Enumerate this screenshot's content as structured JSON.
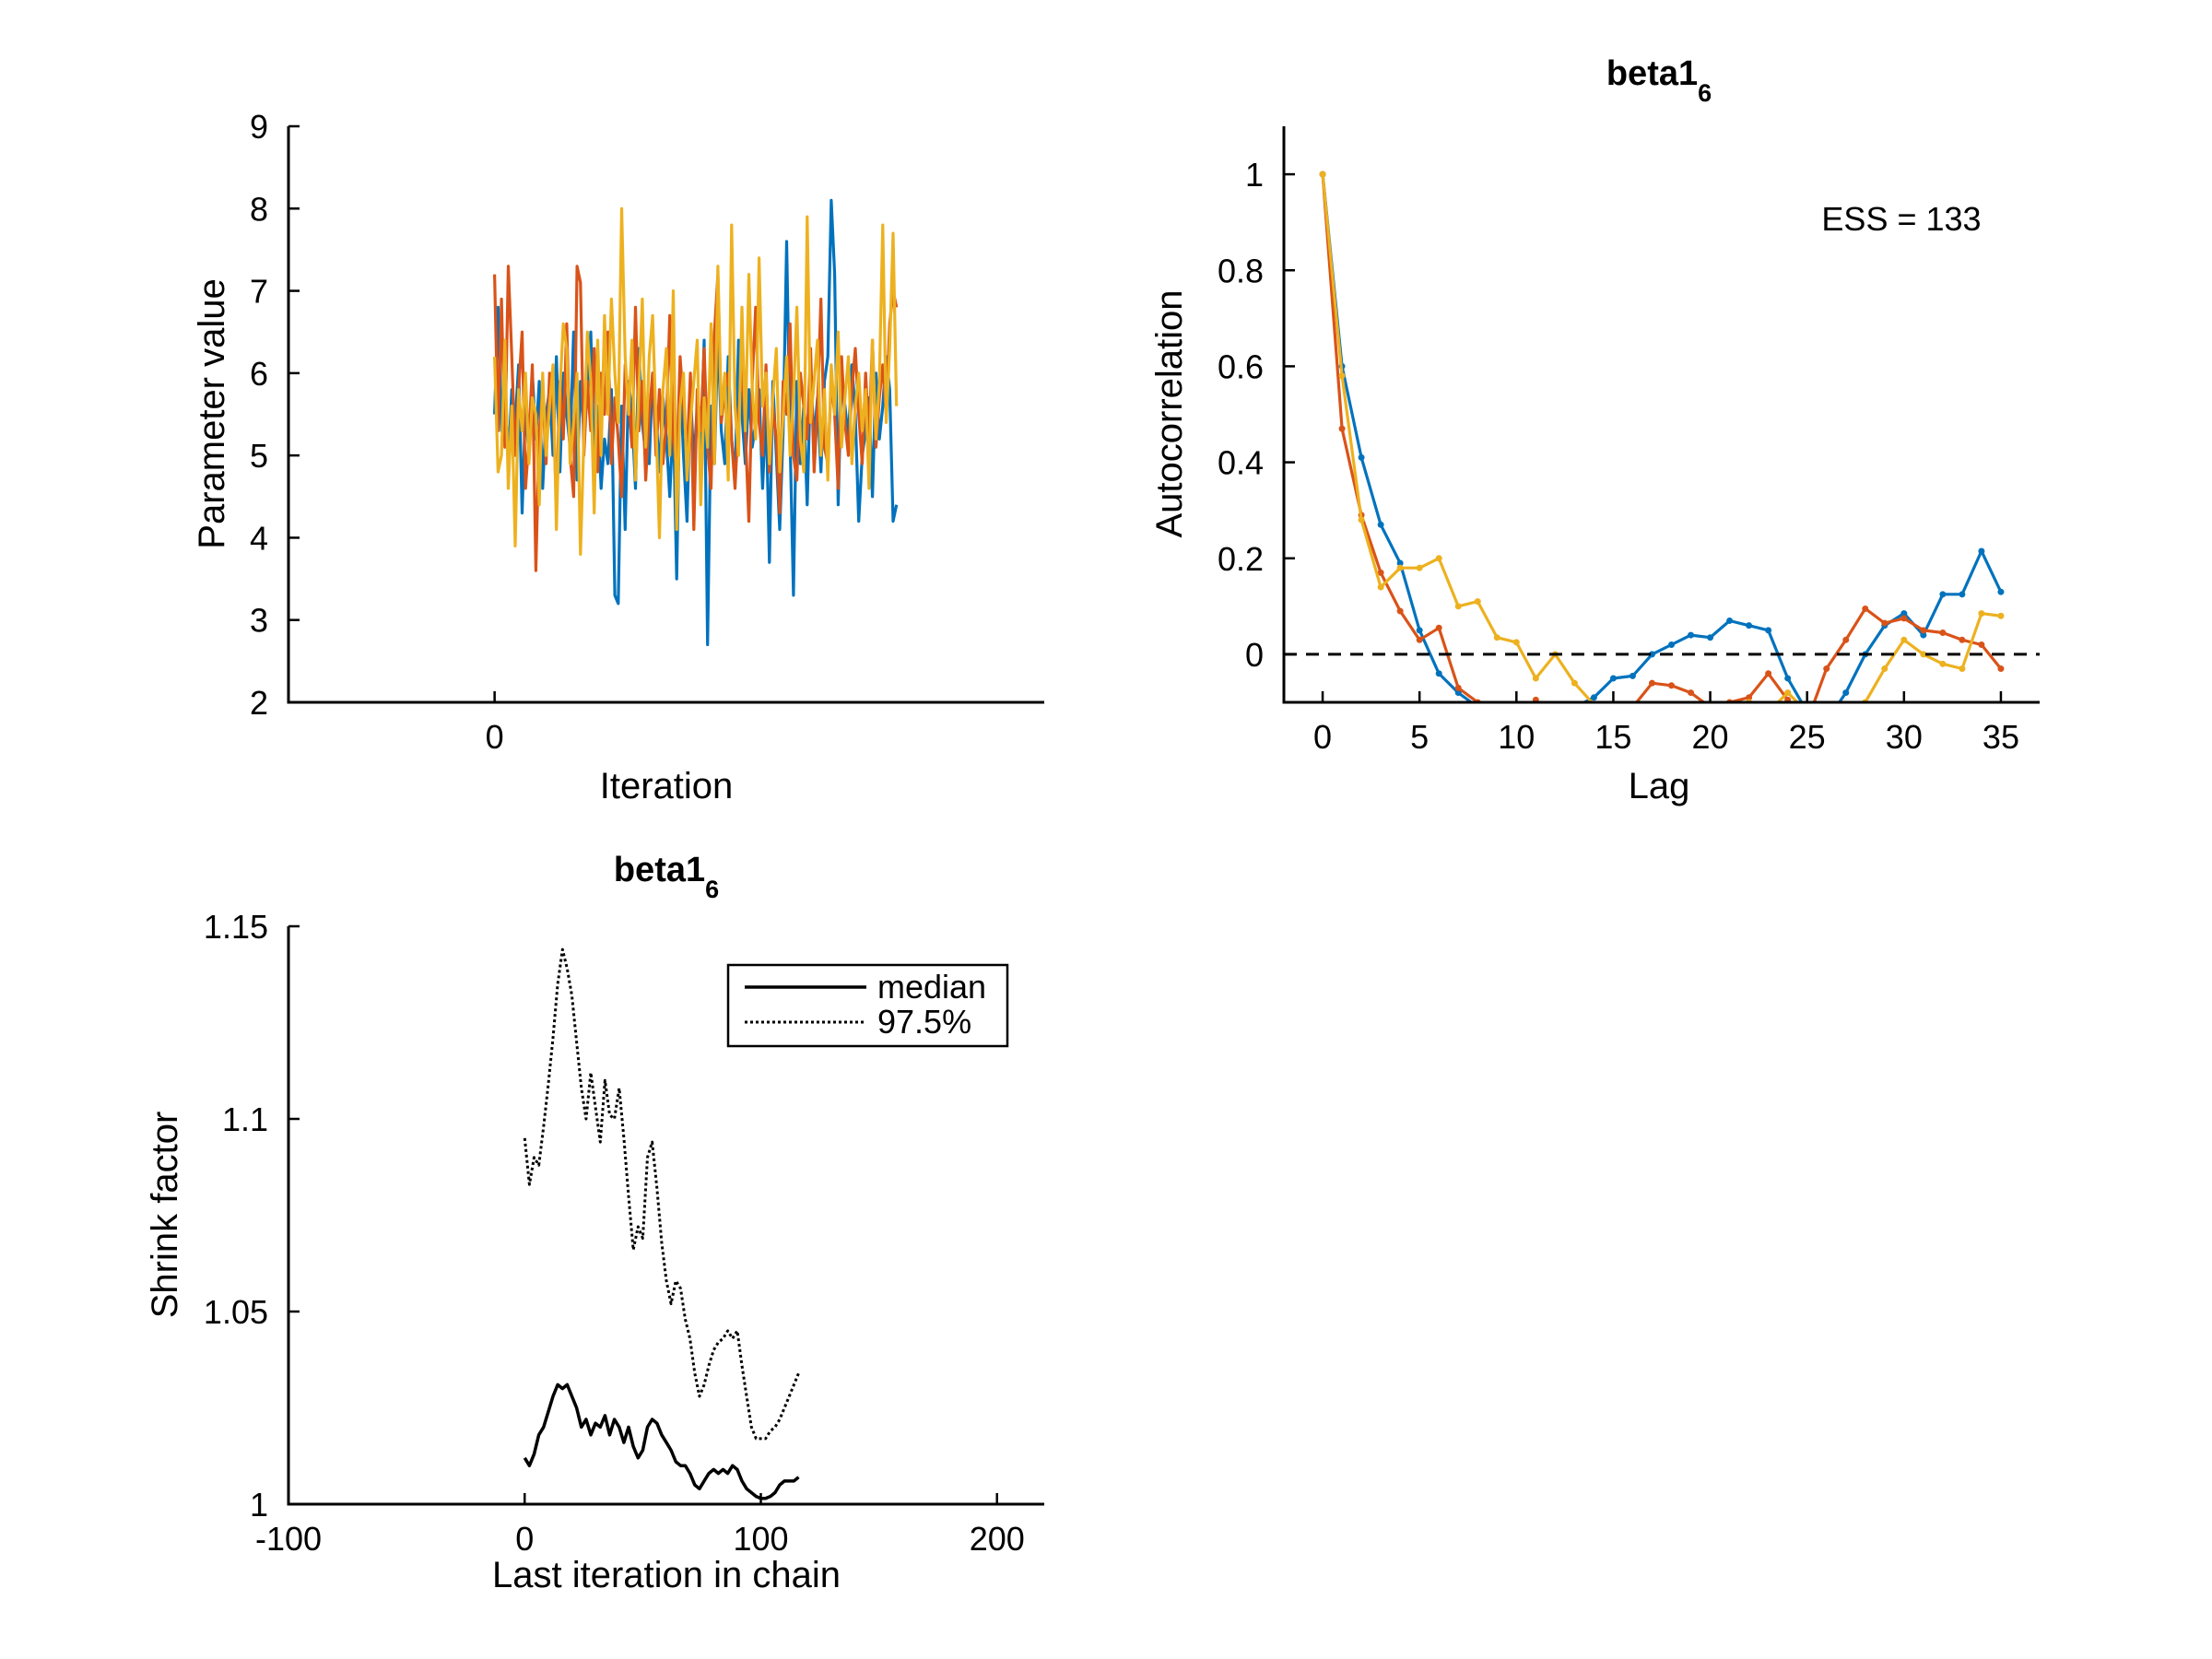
{
  "chart_data": [
    {
      "type": "line",
      "panel": "trace",
      "title": "",
      "xlabel": "Iteration",
      "ylabel": "Parameter value",
      "xlim": [
        -120,
        320
      ],
      "ylim": [
        2,
        9
      ],
      "xticks": [
        0
      ],
      "yticks": [
        2,
        3,
        4,
        5,
        6,
        7,
        8,
        9
      ],
      "grid": false,
      "series": [
        {
          "color": "#0072BD",
          "values": [
            5.5,
            6.8,
            5.3,
            6.0,
            4.9,
            5.8,
            5.4,
            6.1,
            4.3,
            5.6,
            5.0,
            6.0,
            5.2,
            5.9,
            4.6,
            5.5,
            5.8,
            5.0,
            6.2,
            4.8,
            6.0,
            5.5,
            5.1,
            6.5,
            4.7,
            5.9,
            5.3,
            5.7,
            6.5,
            4.9,
            5.6,
            4.6,
            5.2,
            4.9,
            5.8,
            3.3,
            3.2,
            5.6,
            4.1,
            5.9,
            5.5,
            4.6,
            6.3,
            5.4,
            5.0,
            4.9,
            6.0,
            5.5,
            4.8,
            5.7,
            5.2,
            4.5,
            5.5,
            3.5,
            6.0,
            5.0,
            4.2,
            5.8,
            4.9,
            5.6,
            5.0,
            6.4,
            2.7,
            5.6,
            4.9,
            6.5,
            5.3,
            4.9,
            6.2,
            5.2,
            4.7,
            6.4,
            5.5,
            4.9,
            5.8,
            5.1,
            5.4,
            5.8,
            4.6,
            5.6,
            3.7,
            5.9,
            5.0,
            4.1,
            5.3,
            7.6,
            5.2,
            3.3,
            5.9,
            4.9,
            5.6,
            4.4,
            6.0,
            5.2,
            5.7,
            4.8,
            5.9,
            6.2,
            8.1,
            7.2,
            4.4,
            6.0,
            5.6,
            5.2,
            6.1,
            5.5,
            4.2,
            5.0,
            5.3,
            5.7,
            4.5,
            6.0,
            5.2,
            5.6,
            6.2,
            5.8,
            4.2,
            4.4
          ]
        },
        {
          "color": "#D95319",
          "values": [
            7.2,
            5.3,
            6.9,
            5.1,
            7.3,
            6.2,
            5.0,
            5.8,
            6.5,
            4.6,
            5.2,
            6.1,
            3.6,
            5.3,
            5.8,
            4.9,
            6.0,
            5.6,
            4.4,
            5.9,
            5.2,
            6.6,
            5.0,
            4.5,
            7.3,
            7.1,
            5.0,
            5.9,
            5.3,
            6.3,
            4.8,
            6.0,
            5.5,
            6.5,
            4.9,
            5.7,
            5.2,
            4.5,
            6.1,
            5.7,
            5.1,
            6.8,
            5.3,
            5.9,
            4.7,
            5.5,
            6.0,
            5.0,
            5.8,
            4.9,
            5.4,
            6.7,
            5.2,
            4.8,
            6.2,
            5.6,
            5.0,
            6.0,
            4.1,
            5.8,
            5.3,
            6.3,
            5.1,
            4.6,
            6.5,
            7.2,
            5.4,
            5.8,
            6.0,
            5.2,
            4.6,
            5.5,
            6.1,
            5.3,
            4.2,
            5.9,
            6.8,
            5.4,
            5.0,
            6.1,
            4.8,
            5.6,
            5.2,
            4.3,
            5.9,
            5.5,
            6.6,
            5.0,
            4.7,
            6.0,
            5.6,
            5.2,
            6.3,
            4.8,
            5.6,
            6.9,
            5.1,
            4.9,
            5.9,
            5.5,
            4.6,
            6.2,
            5.4,
            5.0,
            5.8,
            6.3,
            5.5,
            4.9,
            6.0,
            5.2,
            6.4,
            5.1,
            5.7,
            6.1,
            5.5,
            6.6,
            7.0,
            6.8
          ]
        },
        {
          "color": "#EDB120",
          "values": [
            6.2,
            4.8,
            5.0,
            6.4,
            4.6,
            5.6,
            3.9,
            5.8,
            5.3,
            6.0,
            4.9,
            5.7,
            5.5,
            4.4,
            6.0,
            5.0,
            5.6,
            6.1,
            4.1,
            5.8,
            6.6,
            6.3,
            4.9,
            5.4,
            6.0,
            3.8,
            5.2,
            6.5,
            5.9,
            4.3,
            6.4,
            5.0,
            6.7,
            5.5,
            6.9,
            6.0,
            5.4,
            8.0,
            6.2,
            5.5,
            6.4,
            4.7,
            5.8,
            6.9,
            5.1,
            6.2,
            6.7,
            5.4,
            4.0,
            5.8,
            6.3,
            5.0,
            7.0,
            4.1,
            5.6,
            6.0,
            4.7,
            5.4,
            5.9,
            6.4,
            4.4,
            5.7,
            5.1,
            6.6,
            4.9,
            7.3,
            5.5,
            6.0,
            4.7,
            7.8,
            5.6,
            5.0,
            6.8,
            5.3,
            7.2,
            5.8,
            5.2,
            7.4,
            5.6,
            6.0,
            4.9,
            5.7,
            6.3,
            4.8,
            5.5,
            6.2,
            5.0,
            5.7,
            6.8,
            5.2,
            4.8,
            7.9,
            5.4,
            5.9,
            6.4,
            5.0,
            5.8,
            4.7,
            6.1,
            5.5,
            6.5,
            5.1,
            5.7,
            6.2,
            4.9,
            5.6,
            6.0,
            5.3,
            5.8,
            4.6,
            6.4,
            5.2,
            5.9,
            7.8,
            5.4,
            6.3,
            7.7,
            5.6
          ]
        }
      ]
    },
    {
      "type": "line",
      "panel": "autocorrelation",
      "title": "beta1",
      "title_subscript": "6",
      "xlabel": "Lag",
      "ylabel": "Autocorrelation",
      "annotation": "ESS = 133",
      "xlim": [
        -2,
        37
      ],
      "ylim": [
        -0.1,
        1.1
      ],
      "xticks": [
        0,
        5,
        10,
        15,
        20,
        25,
        30,
        35
      ],
      "yticks": [
        0,
        0.2,
        0.4,
        0.6,
        0.8,
        1
      ],
      "reference_line_y": 0,
      "grid": false,
      "x": [
        0,
        1,
        2,
        3,
        4,
        5,
        6,
        7,
        8,
        9,
        10,
        11,
        12,
        13,
        14,
        15,
        16,
        17,
        18,
        19,
        20,
        21,
        22,
        23,
        24,
        25,
        26,
        27,
        28,
        29,
        30,
        31,
        32,
        33,
        34,
        35
      ],
      "series": [
        {
          "color": "#0072BD",
          "values": [
            1.0,
            0.6,
            0.41,
            0.27,
            0.19,
            0.05,
            -0.04,
            -0.08,
            -0.11,
            -0.13,
            -0.16,
            -0.18,
            -0.15,
            -0.11,
            -0.09,
            -0.05,
            -0.045,
            0.0,
            0.02,
            0.04,
            0.035,
            0.07,
            0.06,
            0.05,
            -0.05,
            -0.12,
            -0.14,
            -0.08,
            0.0,
            0.06,
            0.085,
            0.04,
            0.125,
            0.125,
            0.215,
            0.13
          ]
        },
        {
          "color": "#D95319",
          "values": [
            1.0,
            0.47,
            0.29,
            0.17,
            0.09,
            0.03,
            0.055,
            -0.07,
            -0.1,
            -0.13,
            -0.15,
            -0.095,
            -0.14,
            -0.16,
            -0.14,
            -0.12,
            -0.11,
            -0.06,
            -0.065,
            -0.08,
            -0.11,
            -0.1,
            -0.09,
            -0.04,
            -0.095,
            -0.14,
            -0.03,
            0.03,
            0.095,
            0.065,
            0.075,
            0.05,
            0.045,
            0.03,
            0.02,
            -0.03
          ]
        },
        {
          "color": "#EDB120",
          "values": [
            1.0,
            0.58,
            0.28,
            0.14,
            0.18,
            0.18,
            0.2,
            0.1,
            0.11,
            0.035,
            0.025,
            -0.05,
            0.0,
            -0.06,
            -0.105,
            -0.14,
            -0.16,
            -0.17,
            -0.19,
            -0.18,
            -0.16,
            -0.14,
            -0.1,
            -0.12,
            -0.08,
            -0.12,
            -0.14,
            -0.16,
            -0.1,
            -0.03,
            0.03,
            0.0,
            -0.02,
            -0.03,
            0.085,
            0.08
          ]
        }
      ]
    },
    {
      "type": "line",
      "panel": "shrink",
      "title": "beta1",
      "title_subscript": "6",
      "xlabel": "Last iteration in chain",
      "ylabel": "Shrink factor",
      "xlim": [
        -100,
        220
      ],
      "ylim": [
        1,
        1.15
      ],
      "xticks": [
        -100,
        0,
        100,
        200
      ],
      "yticks": [
        1,
        1.05,
        1.1,
        1.15
      ],
      "legend_position": "top-right",
      "grid": false,
      "x": [
        0,
        2,
        4,
        6,
        8,
        10,
        12,
        14,
        16,
        18,
        20,
        22,
        24,
        26,
        28,
        30,
        32,
        34,
        36,
        38,
        40,
        42,
        44,
        46,
        48,
        50,
        52,
        54,
        56,
        58,
        60,
        62,
        64,
        66,
        68,
        70,
        72,
        74,
        76,
        78,
        80,
        82,
        84,
        86,
        88,
        90,
        92,
        94,
        96,
        98,
        100,
        102,
        104,
        106,
        108,
        110,
        112,
        114,
        116
      ],
      "series": [
        {
          "name": "median",
          "style": "solid",
          "values": [
            1.012,
            1.01,
            1.013,
            1.018,
            1.02,
            1.024,
            1.028,
            1.031,
            1.03,
            1.031,
            1.028,
            1.025,
            1.02,
            1.022,
            1.018,
            1.021,
            1.02,
            1.023,
            1.018,
            1.022,
            1.02,
            1.016,
            1.02,
            1.015,
            1.012,
            1.014,
            1.02,
            1.022,
            1.021,
            1.018,
            1.016,
            1.014,
            1.011,
            1.01,
            1.01,
            1.008,
            1.005,
            1.004,
            1.006,
            1.008,
            1.009,
            1.008,
            1.009,
            1.008,
            1.01,
            1.009,
            1.006,
            1.004,
            1.003,
            1.002,
            1.0015,
            1.0015,
            1.002,
            1.003,
            1.005,
            1.006,
            1.006,
            1.006,
            1.007
          ]
        },
        {
          "name": "97.5%",
          "style": "dotted",
          "values": [
            1.095,
            1.083,
            1.09,
            1.088,
            1.098,
            1.109,
            1.121,
            1.135,
            1.144,
            1.139,
            1.132,
            1.12,
            1.108,
            1.1,
            1.112,
            1.103,
            1.094,
            1.11,
            1.101,
            1.1,
            1.108,
            1.095,
            1.08,
            1.066,
            1.072,
            1.069,
            1.09,
            1.094,
            1.082,
            1.068,
            1.058,
            1.052,
            1.058,
            1.056,
            1.048,
            1.043,
            1.034,
            1.028,
            1.031,
            1.036,
            1.04,
            1.042,
            1.043,
            1.045,
            1.043,
            1.045,
            1.036,
            1.028,
            1.02,
            1.017,
            1.017,
            1.017,
            1.019,
            1.02,
            1.022,
            1.025,
            1.028,
            1.031,
            1.034
          ]
        }
      ]
    }
  ]
}
